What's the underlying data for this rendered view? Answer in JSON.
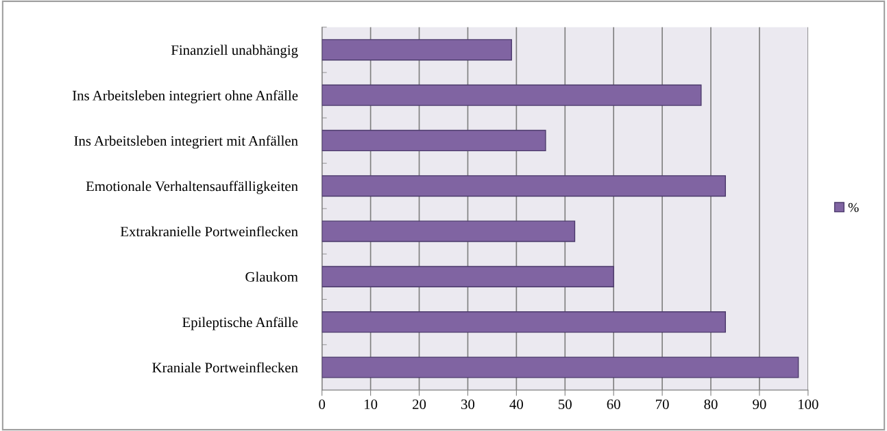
{
  "chart_data": {
    "type": "bar",
    "orientation": "horizontal",
    "categories": [
      "Finanziell unabhängig",
      "Ins Arbeitsleben integriert ohne Anfälle",
      "Ins Arbeitsleben integriert mit Anfällen",
      "Emotionale Verhaltensauffälligkeiten",
      "Extrakranielle Portweinflecken",
      "Glaukom",
      "Epileptische Anfälle",
      "Kraniale Portweinflecken"
    ],
    "series": [
      {
        "name": "%",
        "color": "#8064a2",
        "values": [
          39,
          78,
          46,
          83,
          52,
          60,
          83,
          98
        ]
      }
    ],
    "xlim": [
      0,
      100
    ],
    "xticks": [
      0,
      10,
      20,
      30,
      40,
      50,
      60,
      70,
      80,
      90,
      100
    ],
    "grid": "x",
    "legend": "right"
  }
}
